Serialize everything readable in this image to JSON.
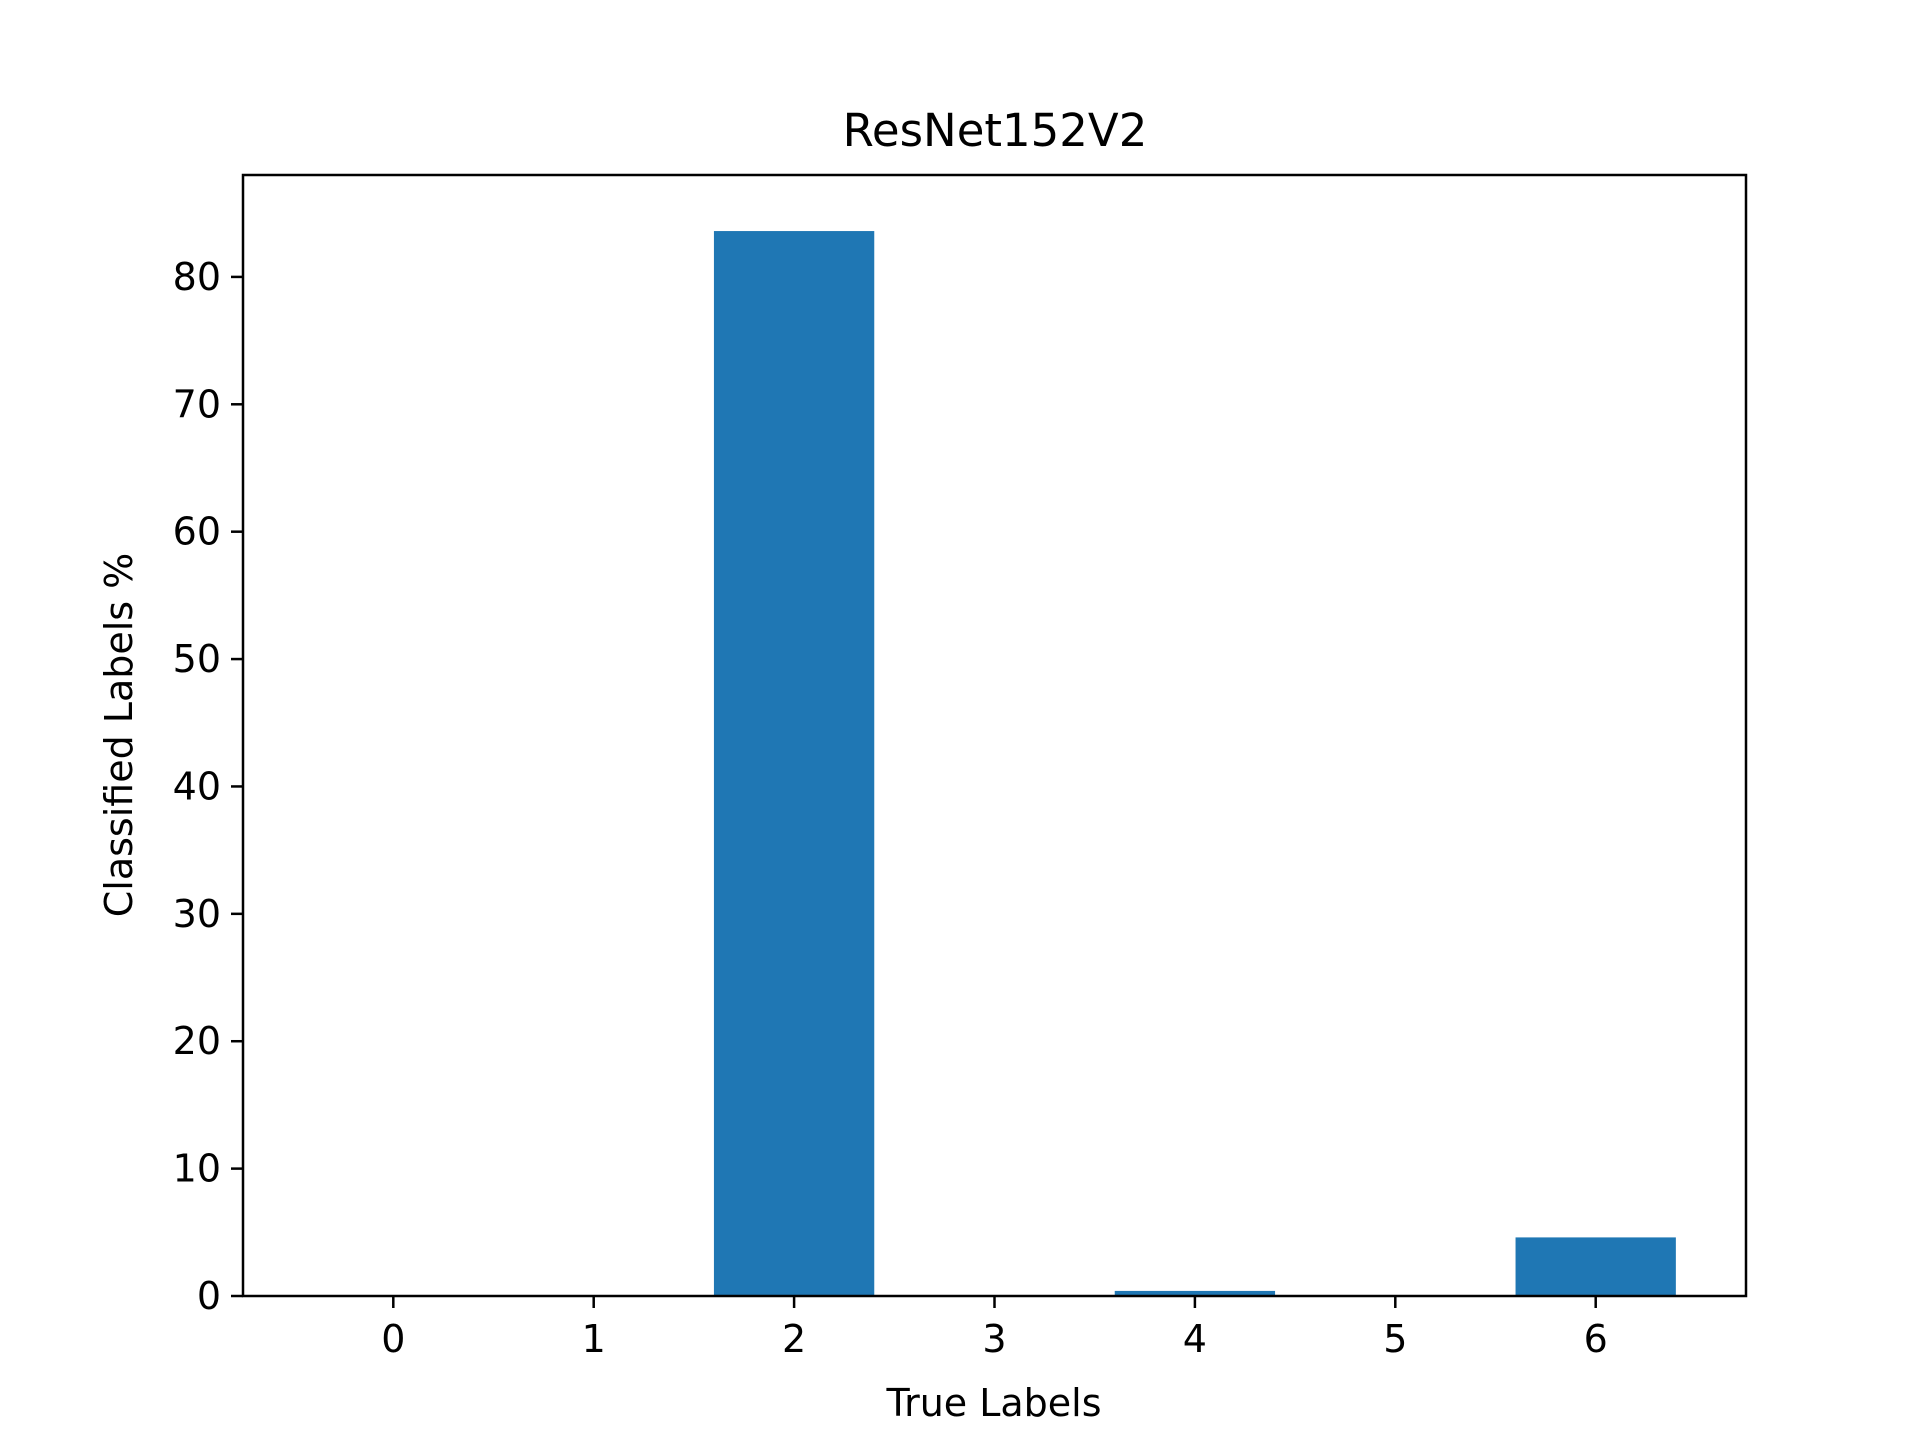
{
  "chart_data": {
    "type": "bar",
    "title": "ResNet152V2",
    "xlabel": "True Labels",
    "ylabel": "Classified Labels %",
    "categories": [
      "0",
      "1",
      "2",
      "3",
      "4",
      "5",
      "6"
    ],
    "values": [
      0,
      0,
      83.6,
      0,
      0.4,
      0,
      4.6
    ],
    "xlim": [
      -0.75,
      6.75
    ],
    "ylim": [
      0,
      88
    ],
    "yticks": [
      0,
      10,
      20,
      30,
      40,
      50,
      60,
      70,
      80
    ],
    "bar_color": "#1f77b4",
    "grid": false,
    "legend": "none"
  }
}
